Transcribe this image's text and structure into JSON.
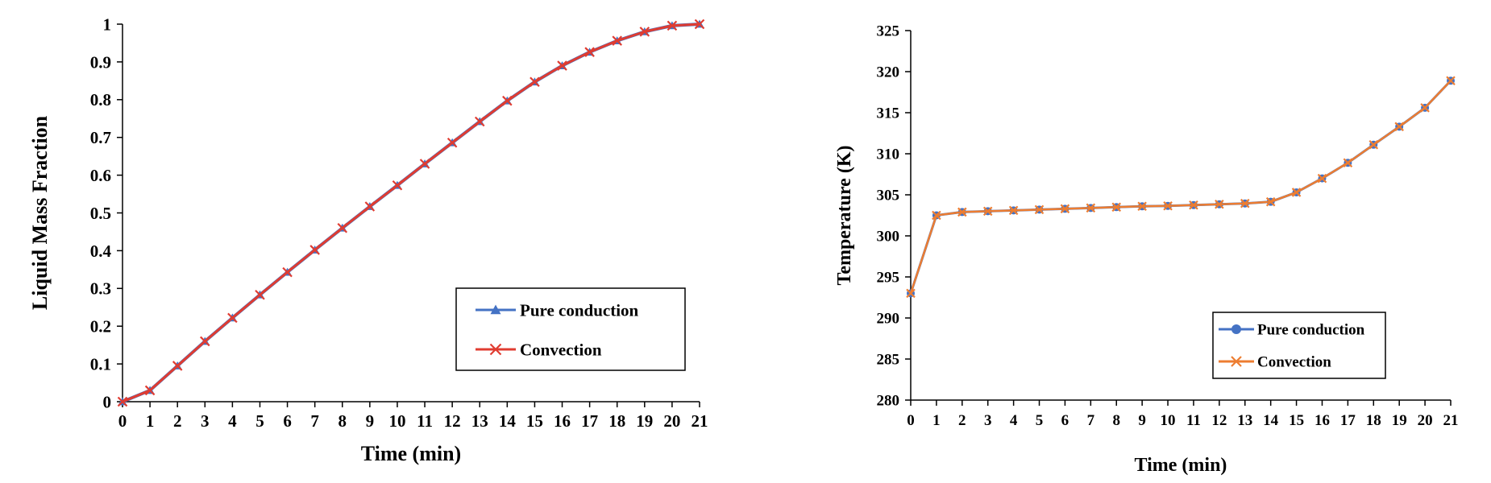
{
  "chart_data": [
    {
      "type": "line",
      "xlabel": "Time (min)",
      "ylabel": "Liquid Mass Fraction",
      "x": [
        0,
        1,
        2,
        3,
        4,
        5,
        6,
        7,
        8,
        9,
        10,
        11,
        12,
        13,
        14,
        15,
        16,
        17,
        18,
        19,
        20,
        21
      ],
      "xlim": [
        0,
        21
      ],
      "ylim": [
        0,
        1
      ],
      "yticks": [
        "0",
        "0.1",
        "0.2",
        "0.3",
        "0.4",
        "0.5",
        "0.6",
        "0.7",
        "0.8",
        "0.9",
        "1"
      ],
      "grid": false,
      "legend_position": "bottom-right",
      "series": [
        {
          "name": "Pure conduction",
          "marker": "triangle",
          "color": "#4472C4",
          "values": [
            0,
            0.03,
            0.095,
            0.16,
            0.222,
            0.283,
            0.343,
            0.402,
            0.46,
            0.517,
            0.573,
            0.63,
            0.686,
            0.742,
            0.797,
            0.847,
            0.89,
            0.926,
            0.956,
            0.98,
            0.996,
            1.0
          ]
        },
        {
          "name": "Convection",
          "marker": "x",
          "color": "#E03C31",
          "values": [
            0,
            0.03,
            0.095,
            0.16,
            0.222,
            0.283,
            0.343,
            0.402,
            0.46,
            0.517,
            0.573,
            0.63,
            0.686,
            0.742,
            0.797,
            0.847,
            0.89,
            0.926,
            0.956,
            0.98,
            0.996,
            1.0
          ]
        }
      ]
    },
    {
      "type": "line",
      "xlabel": "Time (min)",
      "ylabel": "Temperature (K)",
      "x": [
        0,
        1,
        2,
        3,
        4,
        5,
        6,
        7,
        8,
        9,
        10,
        11,
        12,
        13,
        14,
        15,
        16,
        17,
        18,
        19,
        20,
        21
      ],
      "xlim": [
        0,
        21
      ],
      "ylim": [
        280,
        325
      ],
      "yticks": [
        "280",
        "285",
        "290",
        "295",
        "300",
        "305",
        "310",
        "315",
        "320",
        "325"
      ],
      "grid": false,
      "legend_position": "bottom-right",
      "series": [
        {
          "name": "Pure conduction",
          "marker": "circle",
          "color": "#4472C4",
          "values": [
            293,
            302.5,
            302.9,
            303.0,
            303.1,
            303.2,
            303.3,
            303.4,
            303.5,
            303.6,
            303.65,
            303.75,
            303.85,
            303.95,
            304.15,
            305.3,
            307.0,
            308.9,
            311.1,
            313.3,
            315.6,
            318.9
          ]
        },
        {
          "name": "Convection",
          "marker": "x",
          "color": "#ED7D31",
          "values": [
            293,
            302.5,
            302.9,
            303.0,
            303.1,
            303.2,
            303.3,
            303.4,
            303.5,
            303.6,
            303.65,
            303.75,
            303.85,
            303.95,
            304.15,
            305.3,
            307.0,
            308.9,
            311.1,
            313.3,
            315.6,
            318.9
          ]
        }
      ]
    }
  ]
}
